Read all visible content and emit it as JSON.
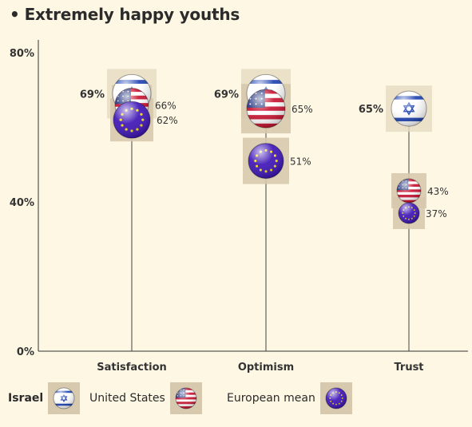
{
  "title": "Extremely happy youths",
  "title_bullet": "•",
  "chart_data": {
    "type": "scatter",
    "categories": [
      "Satisfaction",
      "Optimism",
      "Trust"
    ],
    "series": [
      {
        "name": "Israel",
        "values": [
          69,
          69,
          65
        ],
        "labels": [
          "69%",
          "69%",
          "65%"
        ],
        "icon": "israel-flag-icon"
      },
      {
        "name": "United States",
        "values": [
          66,
          65,
          43
        ],
        "labels": [
          "66%",
          "65%",
          "43%"
        ],
        "icon": "us-flag-icon"
      },
      {
        "name": "European mean",
        "values": [
          62,
          51,
          37
        ],
        "labels": [
          "62%",
          "51%",
          "37%"
        ],
        "icon": "eu-flag-icon"
      }
    ],
    "y_ticks": [
      "80%",
      "40%",
      "0%"
    ],
    "ylim": [
      0,
      80
    ],
    "grid": false,
    "legend_placement": "bottom"
  },
  "legend": [
    {
      "label": "Israel",
      "icon": "israel-flag-icon"
    },
    {
      "label": "United States",
      "icon": "us-flag-icon"
    },
    {
      "label": "European mean",
      "icon": "eu-flag-icon"
    }
  ],
  "colors": {
    "background": "#fdf7e4",
    "israel_blue": "#1a3fb0",
    "us_red": "#c8102e",
    "eu_blue": "#3a10b5",
    "eu_star": "#f5d90a",
    "highlight_box": "#d7c9ad",
    "axis": "#333333"
  }
}
